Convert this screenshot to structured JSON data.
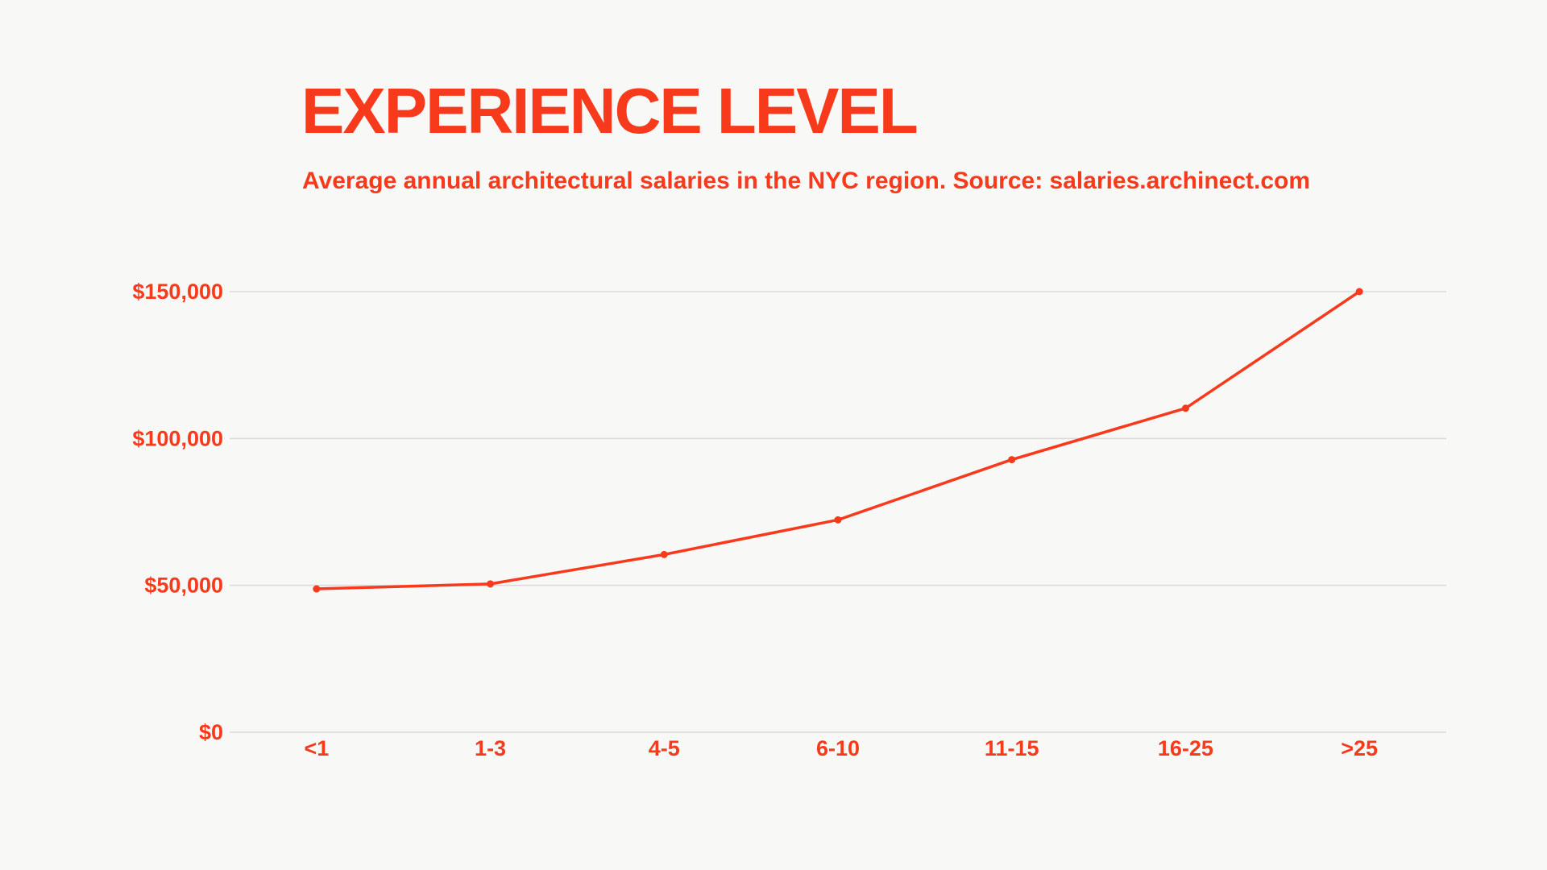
{
  "chart_data": {
    "type": "line",
    "title": "Experience Level",
    "subtitle": "Average annual architectural salaries in the NYC region. Source: salaries.archinect.com",
    "xlabel": "",
    "ylabel": "",
    "categories": [
      "<1",
      "1-3",
      "4-5",
      "6-10",
      "11-15",
      "16-25",
      ">25"
    ],
    "values": [
      48800,
      50500,
      60500,
      72300,
      92800,
      110300,
      150000
    ],
    "ylim": [
      0,
      150000
    ],
    "yticks": [
      0,
      50000,
      100000,
      150000
    ],
    "ytick_labels": [
      "$0",
      "$50,000",
      "$100,000",
      "$150,000"
    ],
    "grid": true,
    "legend": "none",
    "color": "#f7391c"
  }
}
